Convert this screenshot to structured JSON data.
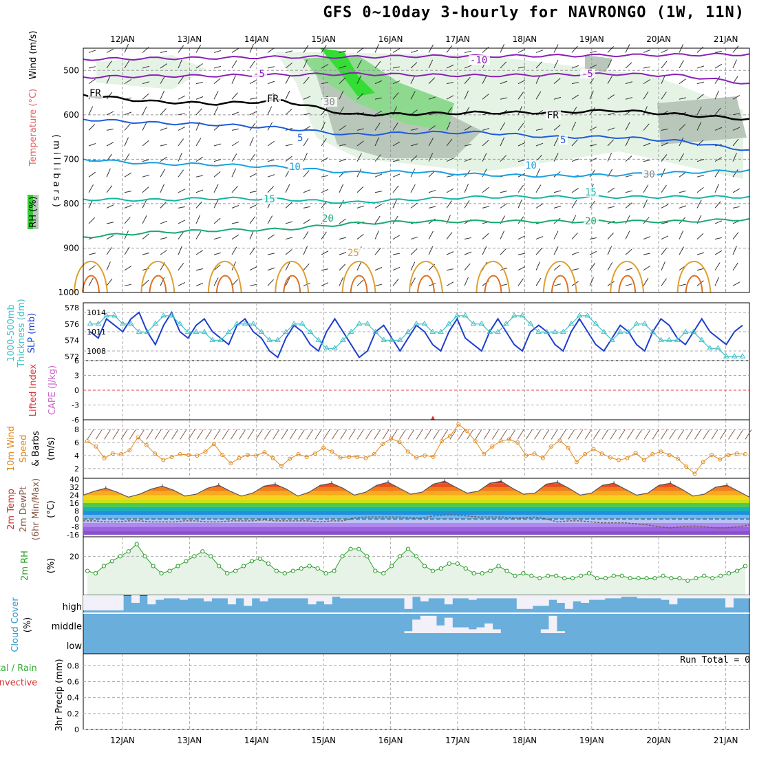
{
  "title": "GFS 0~10day 3-hourly for NAVRONGO (1W, 11N)",
  "run_total": "Run Total = 0",
  "colors": {
    "rh_green": "#33cc33",
    "temp_purple": "#8a2be2",
    "temp_blue": "#1e5bd8",
    "cape": "#cc66cc",
    "li": "#dd3333",
    "wind10": "#e08a1e",
    "rh2m": "#2a9d2a",
    "cloud": "#3399cc",
    "precip": "#cc3333"
  },
  "chart_data": [
    {
      "panel": "upper_air",
      "type": "heatmap",
      "ylabel_parts": [
        "RH (%)",
        "Temperature (°C)",
        "Wind (m/s)"
      ],
      "ylabel2": "(millibars)",
      "y_ticks": [
        "500",
        "600",
        "700",
        "800",
        "900",
        "1000"
      ],
      "x_ticks": [
        "12JAN",
        "13JAN",
        "14JAN",
        "15JAN",
        "16JAN",
        "17JAN",
        "18JAN",
        "19JAN",
        "20JAN",
        "21JAN"
      ],
      "contour_labels": [
        "-10",
        "-5",
        "FR",
        "5",
        "10",
        "15",
        "20",
        "25",
        "30"
      ],
      "isotherms": [
        {
          "name": "-10",
          "pressure_mb": [
            475,
            473,
            472,
            470,
            470,
            468,
            468,
            467,
            466,
            465,
            464
          ]
        },
        {
          "name": "-5",
          "pressure_mb": [
            515,
            513,
            512,
            510,
            508,
            510,
            512,
            510,
            508,
            512,
            530
          ]
        },
        {
          "name": "FR",
          "pressure_mb": [
            555,
            570,
            575,
            568,
            600,
            598,
            595,
            595,
            590,
            600,
            610
          ]
        },
        {
          "name": "5",
          "pressure_mb": [
            610,
            618,
            622,
            630,
            645,
            640,
            640,
            650,
            650,
            660,
            680
          ]
        },
        {
          "name": "10",
          "pressure_mb": [
            700,
            710,
            712,
            718,
            730,
            728,
            735,
            738,
            735,
            730,
            725
          ]
        },
        {
          "name": "15",
          "pressure_mb": [
            790,
            792,
            788,
            790,
            798,
            790,
            785,
            785,
            785,
            785,
            785
          ]
        },
        {
          "name": "20",
          "pressure_mb": [
            875,
            865,
            860,
            858,
            845,
            840,
            840,
            840,
            840,
            840,
            835
          ]
        }
      ]
    },
    {
      "panel": "thickness_slp",
      "type": "line",
      "ylabel_parts": [
        "1000-500mb",
        "Thickness (dm)",
        "SLP (mb)"
      ],
      "left_ticks": [
        "578",
        "576",
        "574",
        "572"
      ],
      "right_ticks": [
        "1014",
        "1011",
        "1008"
      ],
      "series": [
        {
          "name": "SLP (mb)",
          "values": [
            1011,
            1010,
            1013,
            1012,
            1011,
            1013,
            1014,
            1011,
            1009,
            1012,
            1014,
            1011,
            1010,
            1012,
            1013,
            1011,
            1010,
            1009,
            1012,
            1013,
            1011,
            1010,
            1008,
            1007,
            1010,
            1012,
            1011,
            1009,
            1008,
            1011,
            1013,
            1011,
            1009,
            1007,
            1008,
            1011,
            1012,
            1010,
            1008,
            1010,
            1012,
            1011,
            1009,
            1008,
            1011,
            1013,
            1010,
            1009,
            1008,
            1011,
            1013,
            1011,
            1009,
            1008,
            1011,
            1012,
            1011,
            1009,
            1008,
            1011,
            1013,
            1011,
            1009,
            1008,
            1010,
            1012,
            1011,
            1009,
            1008,
            1011,
            1013,
            1012,
            1010,
            1009,
            1011,
            1013,
            1011,
            1010,
            1009,
            1011,
            1012
          ]
        },
        {
          "name": "Thickness (dm)",
          "values": [
            576,
            576,
            577,
            577,
            576,
            576,
            575,
            575,
            576,
            577,
            577,
            576,
            575,
            575,
            575,
            574,
            574,
            575,
            576,
            576,
            576,
            575,
            574,
            574,
            575,
            576,
            576,
            575,
            574,
            573,
            573,
            574,
            575,
            576,
            576,
            575,
            574,
            574,
            574,
            575,
            576,
            576,
            575,
            575,
            576,
            577,
            577,
            576,
            576,
            575,
            575,
            576,
            577,
            577,
            576,
            575,
            575,
            575,
            575,
            576,
            577,
            577,
            576,
            575,
            574,
            575,
            575,
            576,
            576,
            575,
            574,
            574,
            574,
            575,
            575,
            574,
            573,
            573,
            572,
            572,
            572
          ]
        }
      ]
    },
    {
      "panel": "cape_li",
      "type": "line",
      "ylabel_parts": [
        "CAPE (J/kg)",
        "Lifted Index"
      ],
      "y_ticks": [
        "6",
        "3",
        "0",
        "-3",
        "-6"
      ],
      "series": [
        {
          "name": "Lifted Index",
          "values": [
            8,
            8,
            8,
            8,
            8,
            8,
            8,
            8,
            8,
            8
          ]
        }
      ]
    },
    {
      "panel": "wind10m",
      "type": "line",
      "ylabel_parts": [
        "10m Wind",
        "Speed",
        "& Barbs",
        "(m/s)"
      ],
      "y_ticks": [
        "8",
        "6",
        "4",
        "2"
      ],
      "series": [
        {
          "name": "10m Wind Speed",
          "values": [
            6.2,
            5.4,
            3.6,
            4.3,
            4.2,
            4.8,
            6.8,
            5.6,
            4.3,
            3.3,
            3.8,
            4.2,
            4.1,
            4.0,
            4.6,
            5.8,
            4.1,
            2.8,
            3.6,
            4.1,
            4.0,
            4.5,
            3.6,
            2.4,
            3.5,
            4.2,
            3.8,
            4.3,
            5.2,
            4.6,
            3.7,
            3.8,
            3.8,
            3.6,
            4.2,
            5.8,
            6.6,
            6.1,
            4.6,
            3.7,
            4.0,
            3.8,
            6.2,
            7.0,
            8.8,
            7.8,
            6.2,
            4.2,
            5.4,
            6.2,
            6.5,
            6.0,
            4.0,
            4.3,
            3.6,
            5.4,
            6.3,
            5.2,
            3.0,
            4.2,
            5.0,
            4.3,
            3.7,
            3.3,
            3.6,
            4.4,
            3.3,
            4.2,
            4.6,
            4.1,
            3.5,
            2.3,
            1.2,
            3.0,
            4.1,
            3.4,
            4.1,
            4.3,
            4.2
          ]
        }
      ]
    },
    {
      "panel": "temp2m",
      "type": "area",
      "ylabel_parts": [
        "2m Temp",
        "2m DewPt",
        "(6hr Min/Max)",
        "(°C)"
      ],
      "y_ticks": [
        "40",
        "32",
        "24",
        "16",
        "8",
        "0",
        "-8",
        "-16"
      ],
      "series": [
        {
          "name": "2m Temp",
          "values": [
            24,
            28,
            31,
            27,
            22,
            25,
            30,
            33,
            29,
            23,
            25,
            31,
            34,
            28,
            23,
            26,
            33,
            35,
            30,
            23,
            27,
            34,
            36,
            31,
            24,
            27,
            34,
            37,
            31,
            25,
            27,
            35,
            38,
            32,
            26,
            28,
            36,
            38,
            31,
            25,
            26,
            35,
            37,
            31,
            24,
            26,
            34,
            36,
            30,
            24,
            26,
            34,
            36,
            30,
            23,
            25,
            32,
            34,
            28,
            22
          ]
        },
        {
          "name": "2m DewPt",
          "values": [
            -2,
            -2,
            -3,
            -3,
            -2,
            -2,
            -3,
            -3,
            -3,
            -2,
            -2,
            -3,
            -3,
            -2,
            -2,
            -2,
            -1,
            -2,
            -2,
            -2,
            -2,
            -3,
            -2,
            -2,
            1,
            2,
            2,
            2,
            2,
            1,
            1,
            3,
            4,
            4,
            3,
            2,
            2,
            2,
            1,
            1,
            2,
            0,
            -3,
            -2,
            -2,
            -3,
            -4,
            -4,
            -4,
            -5,
            -6,
            -8,
            -9,
            -8,
            -7,
            -8,
            -9,
            -9,
            -8,
            -6
          ]
        }
      ]
    },
    {
      "panel": "rh2m",
      "type": "area",
      "ylabel_parts": [
        "2m RH",
        "(%)"
      ],
      "y_ticks": [
        "20"
      ],
      "series": [
        {
          "name": "2m RH",
          "values": [
            14,
            13,
            16,
            18,
            20,
            22,
            25,
            20,
            16,
            13,
            14,
            16,
            18,
            20,
            22,
            20,
            16,
            13,
            14,
            16,
            18,
            19,
            17,
            14,
            13,
            14,
            15,
            16,
            15,
            13,
            14,
            20,
            23,
            23,
            20,
            14,
            13,
            16,
            20,
            23,
            20,
            16,
            14,
            15,
            17,
            17,
            15,
            13,
            13,
            14,
            16,
            14,
            12,
            13,
            12,
            11,
            12,
            12,
            11,
            11,
            12,
            13,
            11,
            11,
            12,
            12,
            11,
            11,
            11,
            11,
            12,
            11,
            11,
            10,
            11,
            12,
            11,
            12,
            13,
            14,
            16
          ]
        }
      ]
    },
    {
      "panel": "cloud_cover",
      "type": "heatmap",
      "ylabel_parts": [
        "Cloud Cover",
        "(%)"
      ],
      "row_labels": [
        "high",
        "middle",
        "low"
      ]
    },
    {
      "panel": "precip",
      "type": "bar",
      "ylabel_parts": [
        "Total / Rain",
        "Convective",
        "3hr Precip (mm)"
      ],
      "y_ticks": [
        "0.8",
        "0.6",
        "0.4",
        "0.2",
        "0"
      ],
      "x_ticks": [
        "12JAN",
        "13JAN",
        "14JAN",
        "15JAN",
        "16JAN",
        "17JAN",
        "18JAN",
        "19JAN",
        "20JAN",
        "21JAN"
      ],
      "values": [
        0,
        0,
        0,
        0,
        0,
        0,
        0,
        0,
        0,
        0
      ]
    }
  ]
}
